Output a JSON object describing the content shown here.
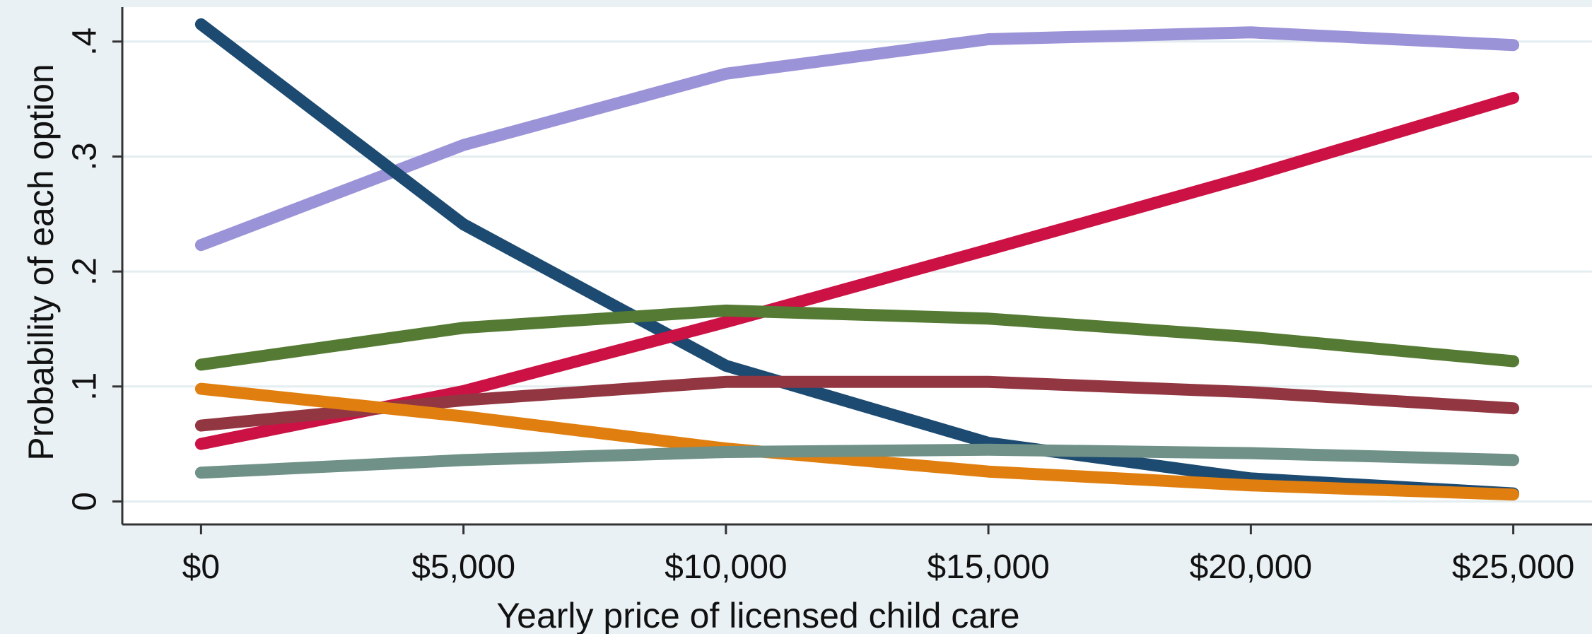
{
  "chart_data": {
    "type": "line",
    "title": "",
    "xlabel": "Yearly price of licensed child care",
    "ylabel": "Probability of each option",
    "x": [
      0,
      5000,
      10000,
      15000,
      20000,
      25000
    ],
    "x_tick_labels": [
      "$0",
      "$5,000",
      "$10,000",
      "$15,000",
      "$20,000",
      "$25,000"
    ],
    "xlim": [
      -1500,
      26500
    ],
    "y_ticks": [
      0,
      0.1,
      0.2,
      0.3,
      0.4
    ],
    "y_tick_labels": [
      "0",
      ".1",
      ".2",
      ".3",
      ".4"
    ],
    "ylim": [
      -0.02,
      0.43
    ],
    "grid": true,
    "series": [
      {
        "color": "#9b93d8",
        "values": [
          0.223,
          0.31,
          0.372,
          0.402,
          0.408,
          0.397
        ]
      },
      {
        "color": "#1c4a70",
        "values": [
          0.415,
          0.241,
          0.118,
          0.051,
          0.02,
          0.007
        ]
      },
      {
        "color": "#cc1144",
        "values": [
          0.05,
          0.096,
          0.156,
          0.219,
          0.283,
          0.351
        ]
      },
      {
        "color": "#547a33",
        "values": [
          0.119,
          0.151,
          0.166,
          0.159,
          0.143,
          0.122
        ]
      },
      {
        "color": "#923742",
        "values": [
          0.066,
          0.088,
          0.104,
          0.104,
          0.095,
          0.081
        ]
      },
      {
        "color": "#e07f10",
        "values": [
          0.098,
          0.074,
          0.046,
          0.026,
          0.014,
          0.006
        ]
      },
      {
        "color": "#6f9187",
        "values": [
          0.025,
          0.036,
          0.043,
          0.045,
          0.042,
          0.036
        ]
      }
    ]
  }
}
